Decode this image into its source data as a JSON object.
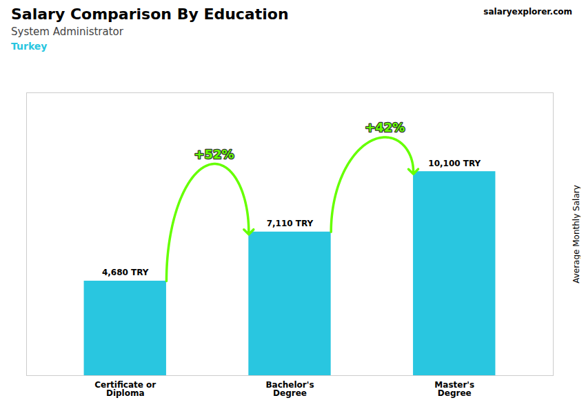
{
  "chart_data": {
    "type": "bar",
    "title": "Salary Comparison By Education",
    "subtitle": "System Administrator",
    "ylabel": "Average Monthly Salary",
    "categories": [
      "Certificate or\nDiploma",
      "Bachelor's\nDegree",
      "Master's\nDegree"
    ],
    "values": [
      4680,
      7110,
      10100
    ],
    "value_labels": [
      "4,680 TRY",
      "7,110 TRY",
      "10,100 TRY"
    ],
    "color": "#29c6e0",
    "ylim": [
      0,
      14000
    ],
    "grid": false,
    "data_labels": true,
    "tick_labels": "x",
    "annotations": [
      {
        "text": "Turkey",
        "color": "#29c6e0"
      },
      {
        "text": "salaryexplorer.com"
      },
      {
        "text": "+52%",
        "from": "Certificate or\nDiploma",
        "to": "Bachelor's\nDegree",
        "color": "#66ff00"
      },
      {
        "text": "+42%",
        "from": "Bachelor's\nDegree",
        "to": "Master's\nDegree",
        "color": "#66ff00"
      }
    ]
  }
}
